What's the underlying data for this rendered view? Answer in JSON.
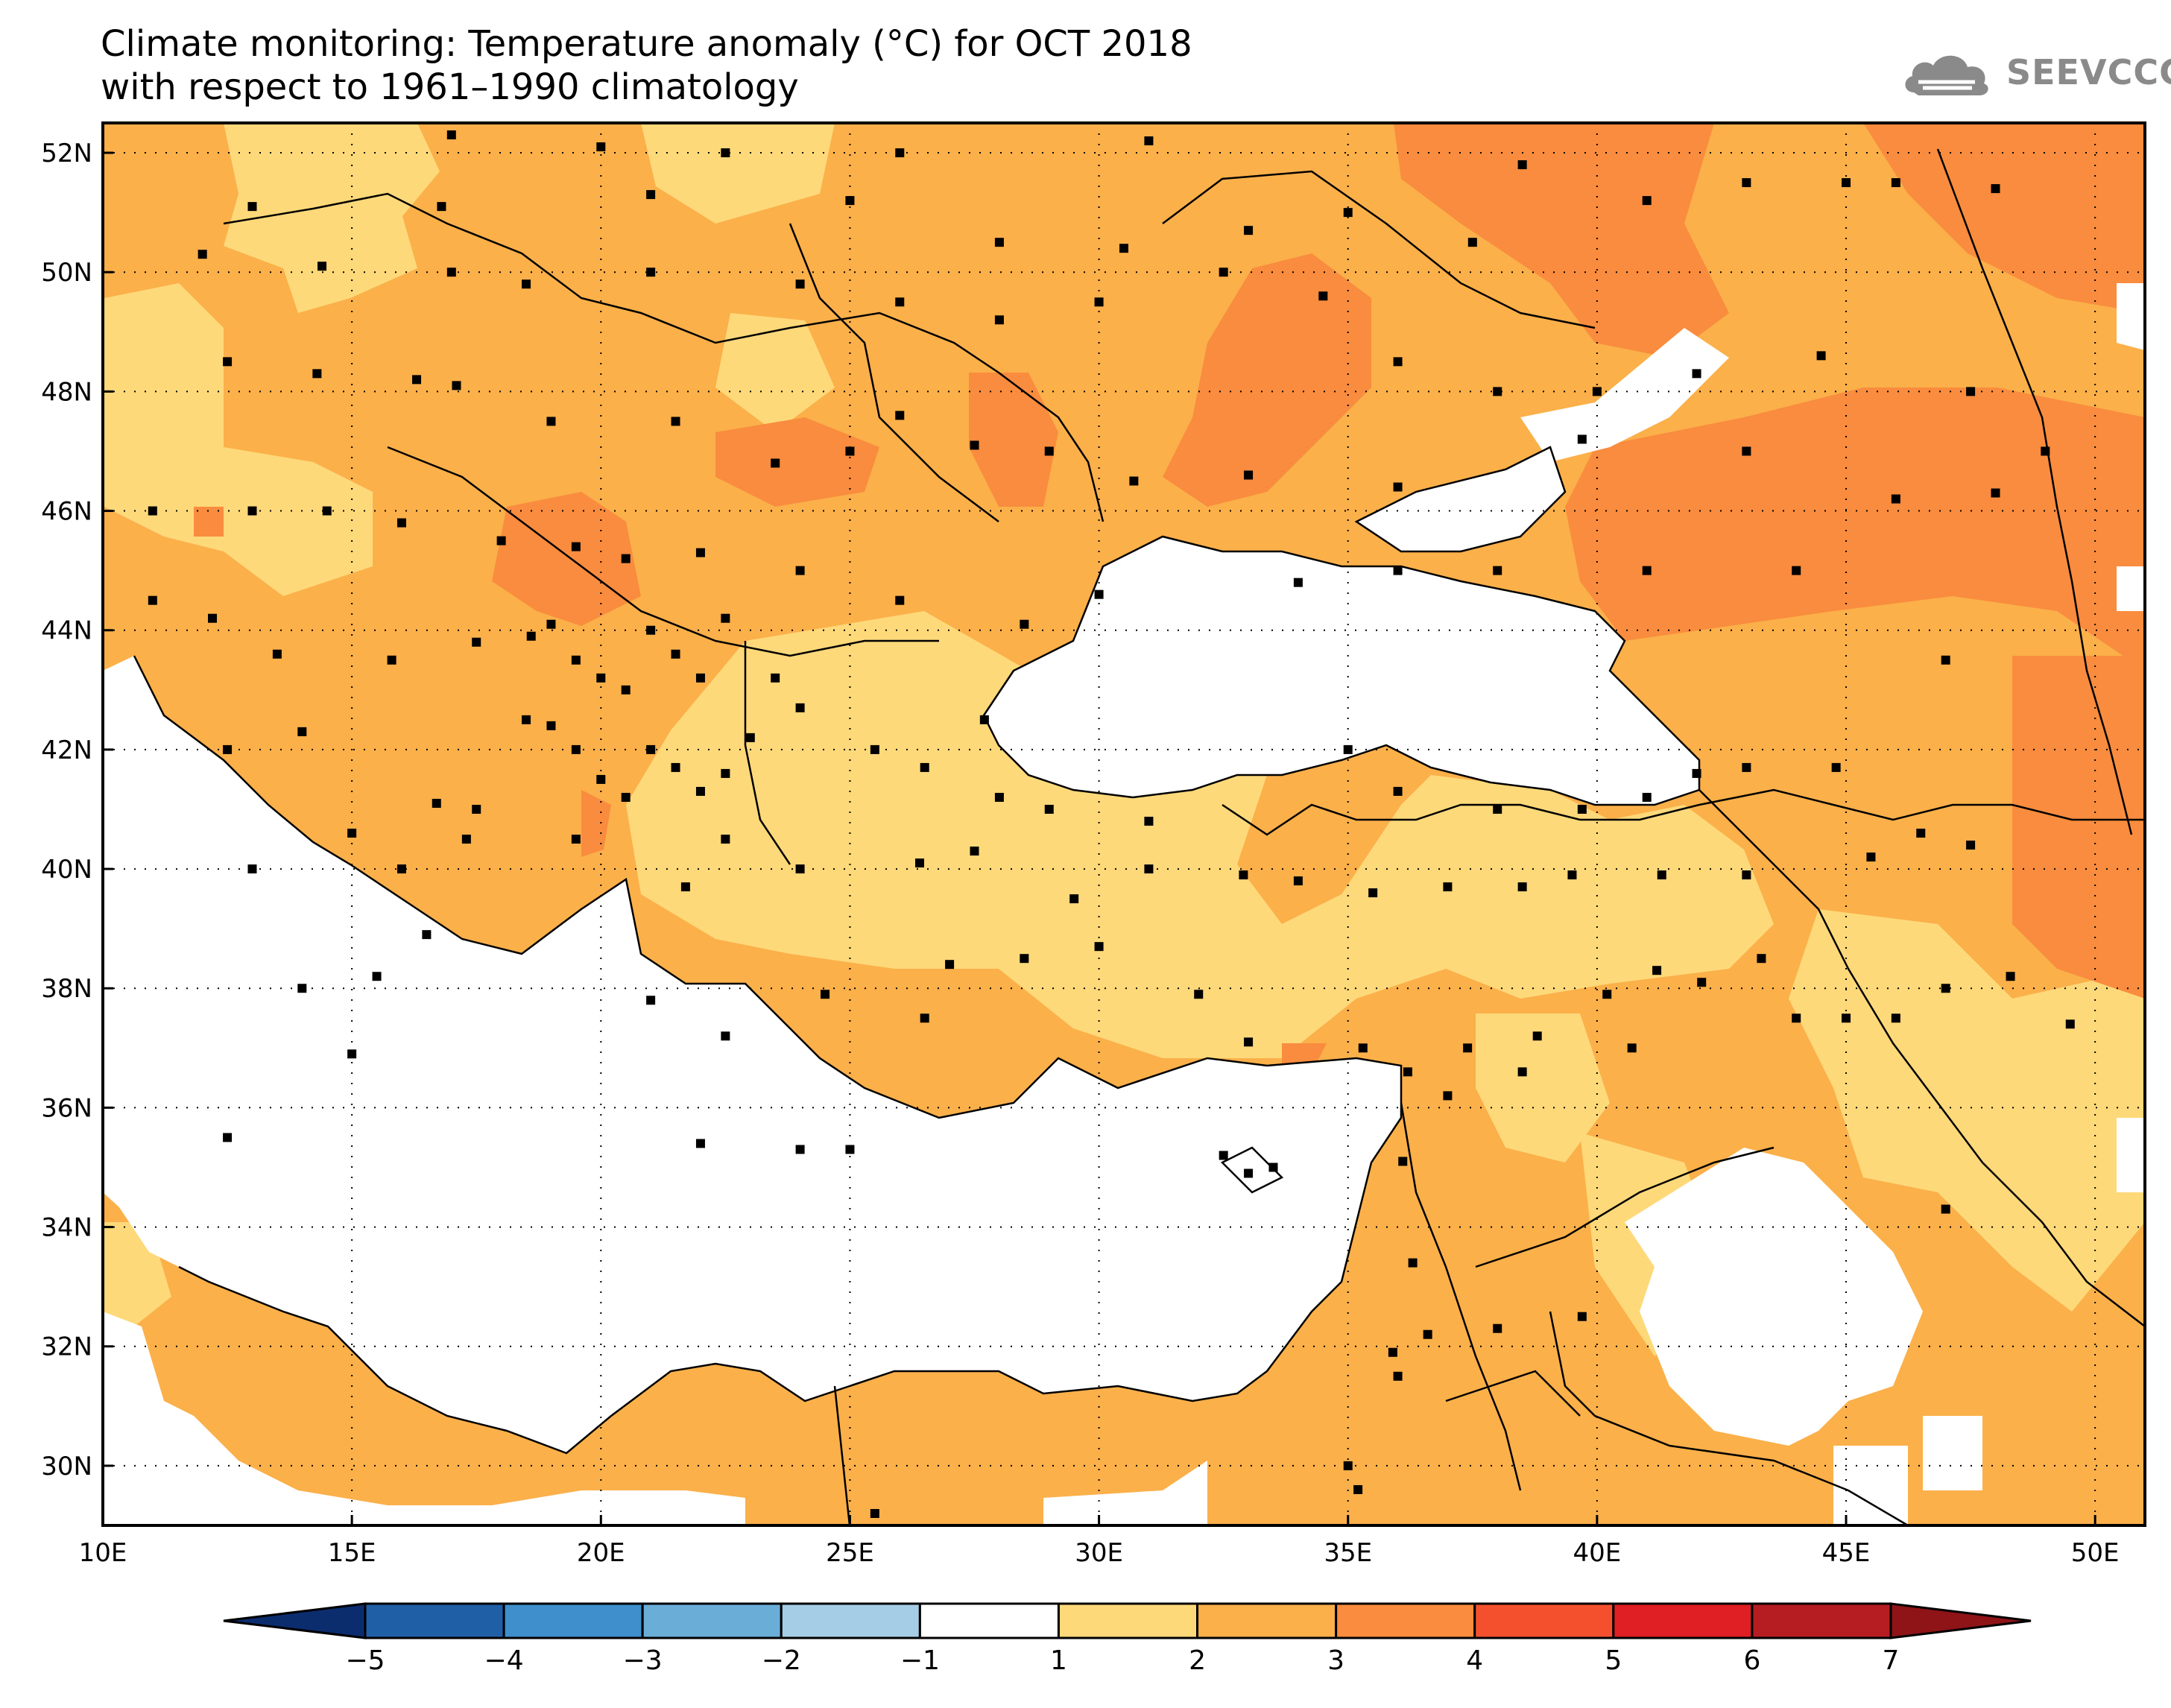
{
  "title": {
    "line1": "Climate monitoring: Temperature anomaly (°C) for OCT 2018",
    "line2": "with respect to 1961–1990 climatology"
  },
  "logo": {
    "text": "SEEVCCC",
    "icon": "cloud-icon"
  },
  "map": {
    "lon_range": [
      10,
      51
    ],
    "lat_range": [
      29,
      52.5
    ],
    "lon_ticks": [
      "10E",
      "15E",
      "20E",
      "25E",
      "30E",
      "35E",
      "40E",
      "45E",
      "50E"
    ],
    "lat_ticks": [
      "30N",
      "32N",
      "34N",
      "36N",
      "38N",
      "40N",
      "42N",
      "44N",
      "46N",
      "48N",
      "50N",
      "52N"
    ],
    "grid": "dotted"
  },
  "legend": {
    "labels": [
      "−5",
      "−4",
      "−3",
      "−2",
      "−1",
      "1",
      "2",
      "3",
      "4",
      "5",
      "6",
      "7"
    ],
    "colors": [
      "#0b2d6e",
      "#1f5fa6",
      "#3e8fcc",
      "#6aaed8",
      "#a6cde6",
      "#ffffff",
      "#fed97a",
      "#fbb04a",
      "#f98c3e",
      "#f4502e",
      "#df1f23",
      "#b61d22",
      "#8e1417"
    ]
  },
  "colors": {
    "anomaly_1_2": "#fed97a",
    "anomaly_2_3": "#fbb04a",
    "anomaly_3_4": "#f98c3e",
    "station": "#000000"
  }
}
